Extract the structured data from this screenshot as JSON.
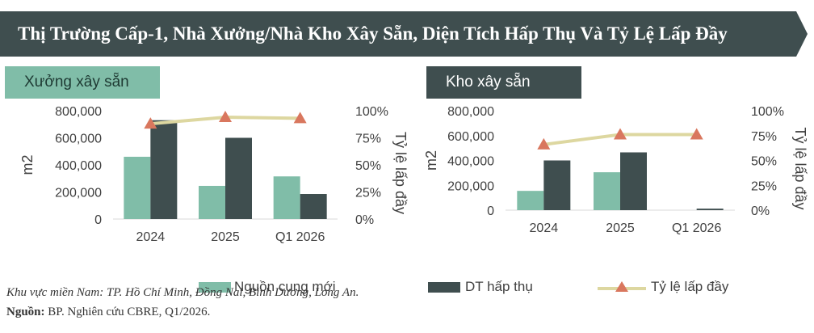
{
  "title": "Thị Trường Cấp-1, Nhà Xưởng/Nhà Kho Xây Sẵn, Diện Tích Hấp Thụ Và Tỷ Lệ Lấp Đầy",
  "colors": {
    "banner": "#3f4e4f",
    "supply": "#80bda8",
    "absorption": "#3f4e4f",
    "occupancy_line": "#ddd7a0",
    "occupancy_marker": "#d9775e"
  },
  "legend": {
    "supply": "Nguồn cung mới",
    "absorption": "DT hấp thụ",
    "occupancy": "Tỷ lệ lấp đầy"
  },
  "footnote": {
    "region": "Khu vực miền Nam: TP. Hồ Chí Minh, Đồng Nai, Bình Dương, Long An.",
    "source_label": "Nguồn:",
    "source_text": " BP. Nghiên cứu CBRE, Q1/2026."
  },
  "chart_data": [
    {
      "type": "bar",
      "panel_label": "Xưởng xây sẵn",
      "categories": [
        "2024",
        "2025",
        "Q1 2026"
      ],
      "ylabel": "m2",
      "y2label": "Tỷ lệ lấp đầy",
      "ylim": [
        0,
        800000
      ],
      "y2lim": [
        0,
        100
      ],
      "yticks": [
        "0",
        "200,000",
        "400,000",
        "600,000",
        "800,000"
      ],
      "y2ticks": [
        "0%",
        "25%",
        "50%",
        "75%",
        "100%"
      ],
      "series": [
        {
          "name": "Nguồn cung mới",
          "type": "bar",
          "values": [
            460000,
            245000,
            315000
          ]
        },
        {
          "name": "DT hấp thụ",
          "type": "bar",
          "values": [
            730000,
            600000,
            185000
          ]
        },
        {
          "name": "Tỷ lệ lấp đầy",
          "type": "line",
          "axis": "right",
          "values": [
            88,
            94,
            93
          ]
        }
      ]
    },
    {
      "type": "bar",
      "panel_label": "Kho xây sẵn",
      "categories": [
        "2024",
        "2025",
        "Q1 2026"
      ],
      "ylabel": "m2",
      "y2label": "Tỷ lệ lấp đầy",
      "ylim": [
        0,
        800000
      ],
      "y2lim": [
        0,
        100
      ],
      "yticks": [
        "0",
        "200,000",
        "400,000",
        "600,000",
        "800,000"
      ],
      "y2ticks": [
        "0%",
        "25%",
        "50%",
        "75%",
        "100%"
      ],
      "series": [
        {
          "name": "Nguồn cung mới",
          "type": "bar",
          "values": [
            155000,
            305000,
            0
          ]
        },
        {
          "name": "DT hấp thụ",
          "type": "bar",
          "values": [
            400000,
            465000,
            12000
          ]
        },
        {
          "name": "Tỷ lệ lấp đầy",
          "type": "line",
          "axis": "right",
          "values": [
            66,
            76,
            76
          ]
        }
      ]
    }
  ]
}
